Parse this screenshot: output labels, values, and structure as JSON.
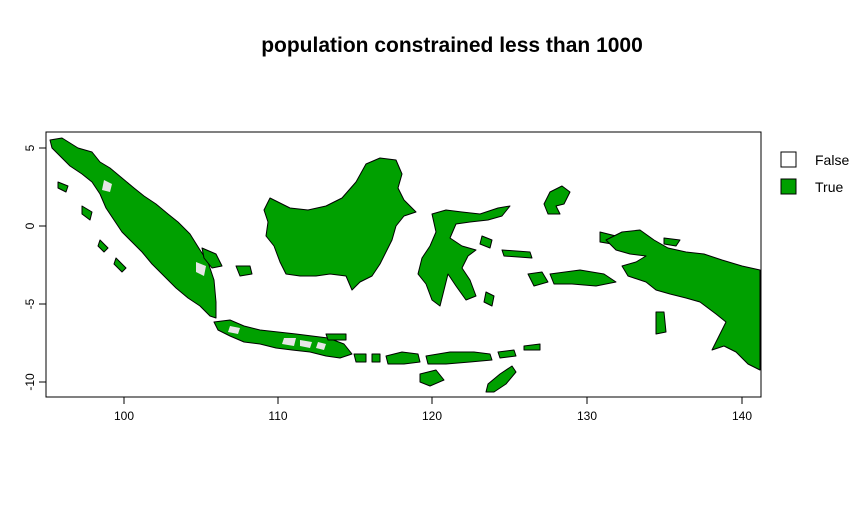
{
  "title": "population constrained less than 1000",
  "colors": {
    "true_fill": "#00A000",
    "false_fill": "#ffffff",
    "outline": "#000000",
    "unconstrained_patch": "#e6e6e6"
  },
  "legend": {
    "items": [
      {
        "label": "False",
        "color": "#ffffff"
      },
      {
        "label": "True",
        "color": "#00A000"
      }
    ]
  },
  "axes": {
    "x": {
      "range": [
        95,
        141
      ],
      "ticks": [
        "100",
        "110",
        "120",
        "130",
        "140"
      ]
    },
    "y": {
      "range": [
        -11,
        6
      ],
      "ticks": [
        "5",
        "0",
        "-5",
        "-10"
      ]
    }
  }
}
